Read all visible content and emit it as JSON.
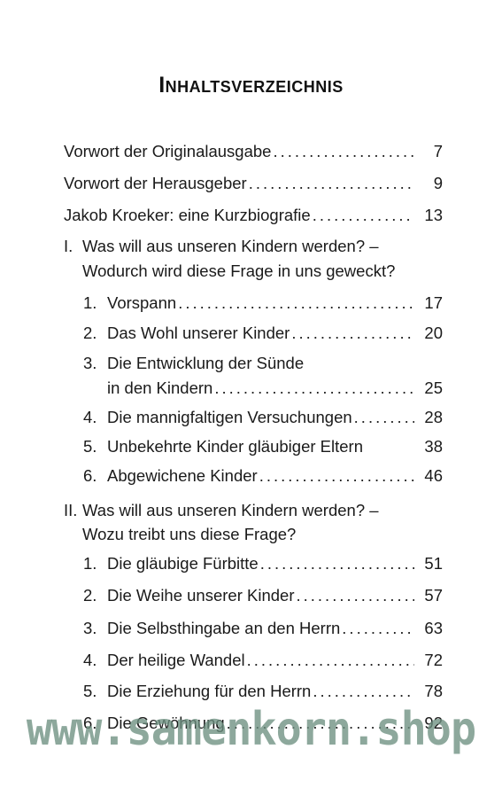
{
  "title": "Inhaltsverzeichnis",
  "entries": [
    {
      "text": "Vorwort der Originalausgabe",
      "page": "7"
    },
    {
      "text": "Vorwort der Herausgeber",
      "page": "9"
    },
    {
      "text": "Jakob Kroeker: eine Kurzbiografie",
      "page": "13"
    }
  ],
  "section1": {
    "num": "I.",
    "line1": "Was will aus unseren Kindern werden? –",
    "line2": "Wodurch wird diese Frage in uns geweckt?",
    "items": [
      {
        "num": "1.",
        "text": "Vorspann",
        "page": "17"
      },
      {
        "num": "2.",
        "text": "Das Wohl unserer Kinder",
        "page": "20"
      },
      {
        "num": "3.",
        "text": "Die Entwicklung der Sünde",
        "text2": "in den Kindern",
        "page": "25"
      },
      {
        "num": "4.",
        "text": "Die mannigfaltigen Versuchungen",
        "page": "28"
      },
      {
        "num": "5.",
        "text": "Unbekehrte Kinder gläubiger Eltern",
        "page": "38"
      },
      {
        "num": "6.",
        "text": "Abgewichene Kinder",
        "page": "46"
      }
    ]
  },
  "section2": {
    "num": "II.",
    "line1": "Was will aus unseren Kindern werden? –",
    "line2": "Wozu treibt uns diese Frage?",
    "items": [
      {
        "num": "1.",
        "text": "Die gläubige Fürbitte",
        "page": "51"
      },
      {
        "num": "2.",
        "text": "Die Weihe unserer Kinder",
        "page": "57"
      },
      {
        "num": "3.",
        "text": "Die Selbsthingabe an den Herrn",
        "page": "63"
      },
      {
        "num": "4.",
        "text": "Der heilige Wandel",
        "page": "72"
      },
      {
        "num": "5.",
        "text": "Die Erziehung für den Herrn",
        "page": "78"
      },
      {
        "num": "6.",
        "text": "Die Gewöhnung",
        "page": "92"
      }
    ]
  },
  "watermark": "www.samenkorn.shop"
}
